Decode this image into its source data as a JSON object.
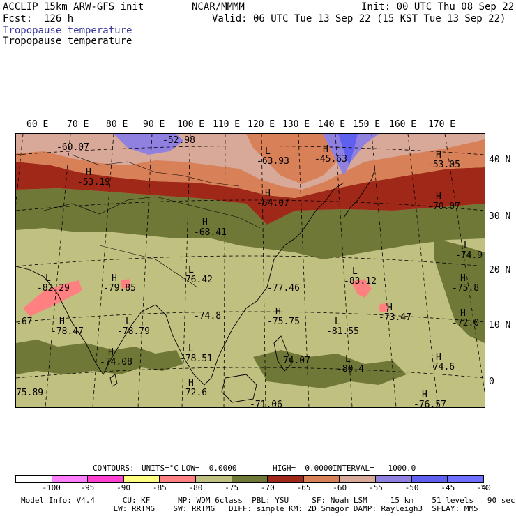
{
  "header": {
    "model": "ACCLIP 15km ARW-GFS init",
    "center": "NCAR/MMMM",
    "init": "Init: 00 UTC Thu 08 Sep 22",
    "fcst": "Fcst:  126 h",
    "valid": "Valid: 06 UTC Tue 13 Sep 22 (15 KST Tue 13 Sep 22)",
    "field_colored": "Tropopause temperature",
    "field_contour": "Tropopause temperature",
    "field_colored_color": "#3a3aa0"
  },
  "map": {
    "lon_labels": [
      "60 E",
      "70 E",
      "80 E",
      "90 E",
      "100 E",
      "110 E",
      "120 E",
      "130 E",
      "140 E",
      "150 E",
      "160 E",
      "170 E"
    ],
    "lat_labels": [
      "40 N",
      "30 N",
      "20 N",
      "10 N",
      "0"
    ],
    "extrema": [
      {
        "type": "",
        "value": "-60.07"
      },
      {
        "type": "",
        "value": "-52.98"
      },
      {
        "type": "L",
        "value": "-63.93"
      },
      {
        "type": "H",
        "value": "-45.63"
      },
      {
        "type": "H",
        "value": "-53.05"
      },
      {
        "type": "H",
        "value": "-53.19"
      },
      {
        "type": "H",
        "value": "-64.07"
      },
      {
        "type": "H",
        "value": "-70.07"
      },
      {
        "type": "H",
        "value": "-68.41"
      },
      {
        "type": "L",
        "value": "-74.9"
      },
      {
        "type": "L",
        "value": "-82.29"
      },
      {
        "type": "H",
        "value": "-79.85"
      },
      {
        "type": "L",
        "value": "-76.42"
      },
      {
        "type": "",
        "value": "-77.46"
      },
      {
        "type": "L",
        "value": "-83.12"
      },
      {
        "type": "H",
        "value": "-75.8"
      },
      {
        "type": "",
        "value": ".67"
      },
      {
        "type": "H",
        "value": "-78.47"
      },
      {
        "type": "L",
        "value": "-78.79"
      },
      {
        "type": "",
        "value": "-74.8"
      },
      {
        "type": "H",
        "value": "-75.75"
      },
      {
        "type": "L",
        "value": "-81.55"
      },
      {
        "type": "H",
        "value": "-73.47"
      },
      {
        "type": "H",
        "value": "-72.0"
      },
      {
        "type": "H",
        "value": "-74.08"
      },
      {
        "type": "L",
        "value": "-78.51"
      },
      {
        "type": "",
        "value": "-74.07"
      },
      {
        "type": "L",
        "value": "-80.4"
      },
      {
        "type": "H",
        "value": "-74.6"
      },
      {
        "type": "",
        "value": "75.89"
      },
      {
        "type": "H",
        "value": "-72.6"
      },
      {
        "type": "",
        "value": "-71.06"
      },
      {
        "type": "H",
        "value": "-76.57"
      }
    ]
  },
  "contours": {
    "label": "CONTOURS:",
    "units": "UNITS=°C",
    "low": "LOW=  0.0000",
    "high": "HIGH=  0.0000",
    "interval": "INTERVAL=   1000.0"
  },
  "colorbar": {
    "colors": [
      "#ffffff",
      "#ff80ff",
      "#ff40d0",
      "#ffff80",
      "#ff8080",
      "#c0c080",
      "#707838",
      "#a02818",
      "#d88058",
      "#d8a898",
      "#9080e0",
      "#6060f0",
      "#7070ff"
    ],
    "labels": [
      "-100",
      "-95",
      "-90",
      "-85",
      "-80",
      "-75",
      "-70",
      "-65",
      "-60",
      "-55",
      "-50",
      "-45",
      "-40"
    ],
    "unit": "°C"
  },
  "footer": {
    "line1": "Model Info: V4.4      CU: KF      MP: WDM 6class  PBL: YSU     SF: Noah LSM     15 km    51 levels   90 sec",
    "line2": "                    LW: RRTMG    SW: RRTMG   DIFF: simple KM: 2D Smagor DAMP: Rayleigh3  SFLAY: MM5"
  }
}
